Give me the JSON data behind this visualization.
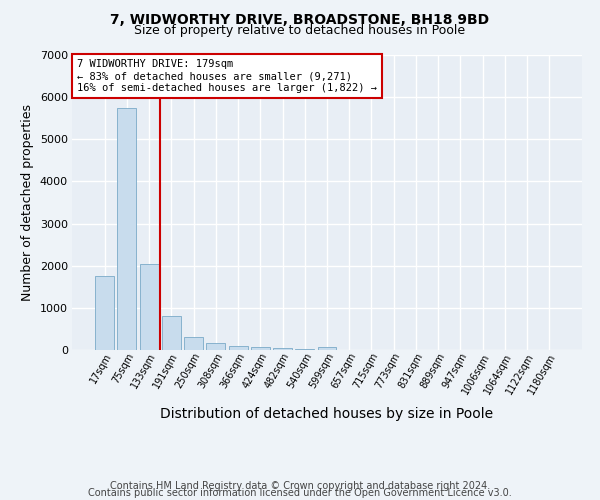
{
  "title": "7, WIDWORTHY DRIVE, BROADSTONE, BH18 9BD",
  "subtitle": "Size of property relative to detached houses in Poole",
  "xlabel": "Distribution of detached houses by size in Poole",
  "ylabel": "Number of detached properties",
  "categories": [
    "17sqm",
    "75sqm",
    "133sqm",
    "191sqm",
    "250sqm",
    "308sqm",
    "366sqm",
    "424sqm",
    "482sqm",
    "540sqm",
    "599sqm",
    "657sqm",
    "715sqm",
    "773sqm",
    "831sqm",
    "889sqm",
    "947sqm",
    "1006sqm",
    "1064sqm",
    "1122sqm",
    "1180sqm"
  ],
  "values": [
    1750,
    5750,
    2050,
    800,
    300,
    175,
    100,
    65,
    45,
    30,
    65,
    0,
    0,
    0,
    0,
    0,
    0,
    0,
    0,
    0,
    0
  ],
  "bar_color": "#c8dced",
  "bar_edge_color": "#7aaac8",
  "vline_color": "#cc0000",
  "vline_x": 2.5,
  "annotation_line1": "7 WIDWORTHY DRIVE: 179sqm",
  "annotation_line2": "← 83% of detached houses are smaller (9,271)",
  "annotation_line3": "16% of semi-detached houses are larger (1,822) →",
  "annotation_box_color": "#cc0000",
  "ylim": [
    0,
    7000
  ],
  "yticks": [
    0,
    1000,
    2000,
    3000,
    4000,
    5000,
    6000,
    7000
  ],
  "footer_line1": "Contains HM Land Registry data © Crown copyright and database right 2024.",
  "footer_line2": "Contains public sector information licensed under the Open Government Licence v3.0.",
  "bg_color": "#eef3f8",
  "plot_bg_color": "#e8eef5",
  "grid_color": "#ffffff",
  "title_fontsize": 10,
  "subtitle_fontsize": 9,
  "axis_label_fontsize": 9,
  "tick_fontsize": 8,
  "footer_fontsize": 7
}
